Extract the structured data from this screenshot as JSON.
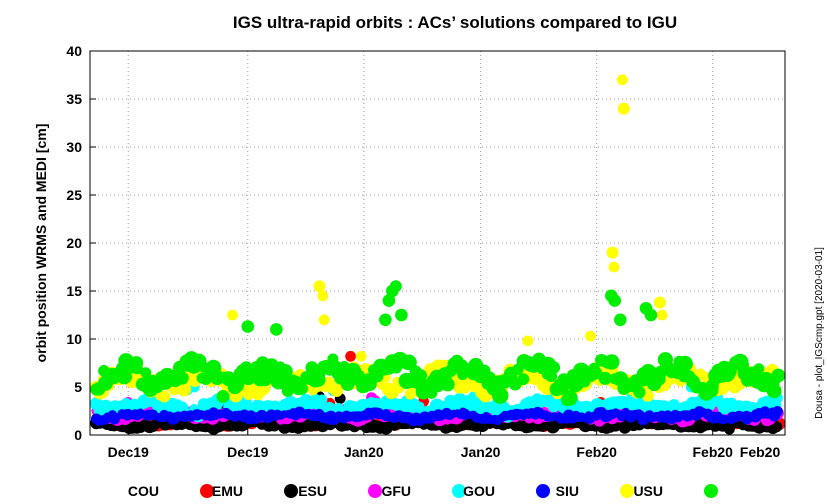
{
  "chart_data": {
    "type": "scatter",
    "title": "IGS ultra-rapid orbits : ACs’ solutions compared to IGU",
    "ylabel": "orbit position WRMS and MEDI [cm]",
    "xlabel": "",
    "credit": "Dousa - plot_IGScmp.gpt   [2020-03-01]",
    "ylim": [
      0,
      40
    ],
    "yticks": [
      0,
      5,
      10,
      15,
      20,
      25,
      30,
      35,
      40
    ],
    "xlim": [
      0,
      100
    ],
    "xticks": [
      {
        "label": "Dec19",
        "x": 5.5
      },
      {
        "label": "Dec19",
        "x": 22.7
      },
      {
        "label": "Jan20",
        "x": 39.4
      },
      {
        "label": "Jan20",
        "x": 56.2
      },
      {
        "label": "Feb20",
        "x": 72.9
      },
      {
        "label": "Feb20",
        "x": 89.6
      },
      {
        "label": "Feb20",
        "x": 106.5
      }
    ],
    "grid": true,
    "legend_position": "bottom",
    "series": [
      {
        "name": "COU",
        "color": "#ff0000",
        "base": 1.3,
        "amp": 0.3,
        "size": 6,
        "seed": 11,
        "extra": [
          [
            37.5,
            8.2
          ],
          [
            34.5,
            3.3
          ],
          [
            48.0,
            3.5
          ],
          [
            73.5,
            3.4
          ]
        ]
      },
      {
        "name": "EMU",
        "color": "#000000",
        "base": 1.1,
        "amp": 0.3,
        "size": 6,
        "seed": 23,
        "extra": [
          [
            19.0,
            3.3
          ],
          [
            33.0,
            4.0
          ],
          [
            36.0,
            3.8
          ],
          [
            92.0,
            0.6
          ]
        ]
      },
      {
        "name": "ESU",
        "color": "#ff00ff",
        "base": 2.2,
        "amp": 0.6,
        "size": 6,
        "seed": 37,
        "extra": [
          [
            5.5,
            3.4
          ],
          [
            33.5,
            2.9
          ],
          [
            40.5,
            3.9
          ],
          [
            41.0,
            3.6
          ]
        ]
      },
      {
        "name": "GFU",
        "color": "#00ffff",
        "base": 3.0,
        "amp": 0.8,
        "size": 6,
        "seed": 51,
        "extra": [
          [
            14.0,
            4.7
          ],
          [
            15.0,
            5.0
          ],
          [
            35.0,
            4.6
          ],
          [
            86.5,
            5.0
          ]
        ]
      },
      {
        "name": "GOU",
        "color": "#0000ff",
        "base": 2.0,
        "amp": 0.4,
        "size": 5,
        "seed": 67,
        "extra": []
      },
      {
        "name": "SIU",
        "color": "#ffff00",
        "base": 5.6,
        "amp": 1.4,
        "size": 6,
        "seed": 79,
        "extra": [
          [
            20.5,
            12.5
          ],
          [
            33.0,
            15.5
          ],
          [
            33.5,
            14.5
          ],
          [
            33.7,
            12.0
          ],
          [
            39.0,
            8.2
          ],
          [
            63.0,
            9.8
          ],
          [
            72.0,
            10.3
          ],
          [
            75.2,
            19.0
          ],
          [
            75.4,
            17.5
          ],
          [
            76.8,
            34.0
          ],
          [
            76.6,
            37.0
          ],
          [
            82.0,
            13.8
          ],
          [
            82.3,
            12.5
          ]
        ]
      },
      {
        "name": "USU",
        "color": "#00ee00",
        "base": 4.7,
        "amp": 2.2,
        "size": 7,
        "seed": 97,
        "extra": [
          [
            22.7,
            11.3
          ],
          [
            26.8,
            11.0
          ],
          [
            42.5,
            12.0
          ],
          [
            43.0,
            14.0
          ],
          [
            43.5,
            15.0
          ],
          [
            44.0,
            15.5
          ],
          [
            44.8,
            12.5
          ],
          [
            75.0,
            14.5
          ],
          [
            75.5,
            14.0
          ],
          [
            76.3,
            12.0
          ],
          [
            80.0,
            13.2
          ],
          [
            80.7,
            12.5
          ]
        ]
      }
    ]
  }
}
